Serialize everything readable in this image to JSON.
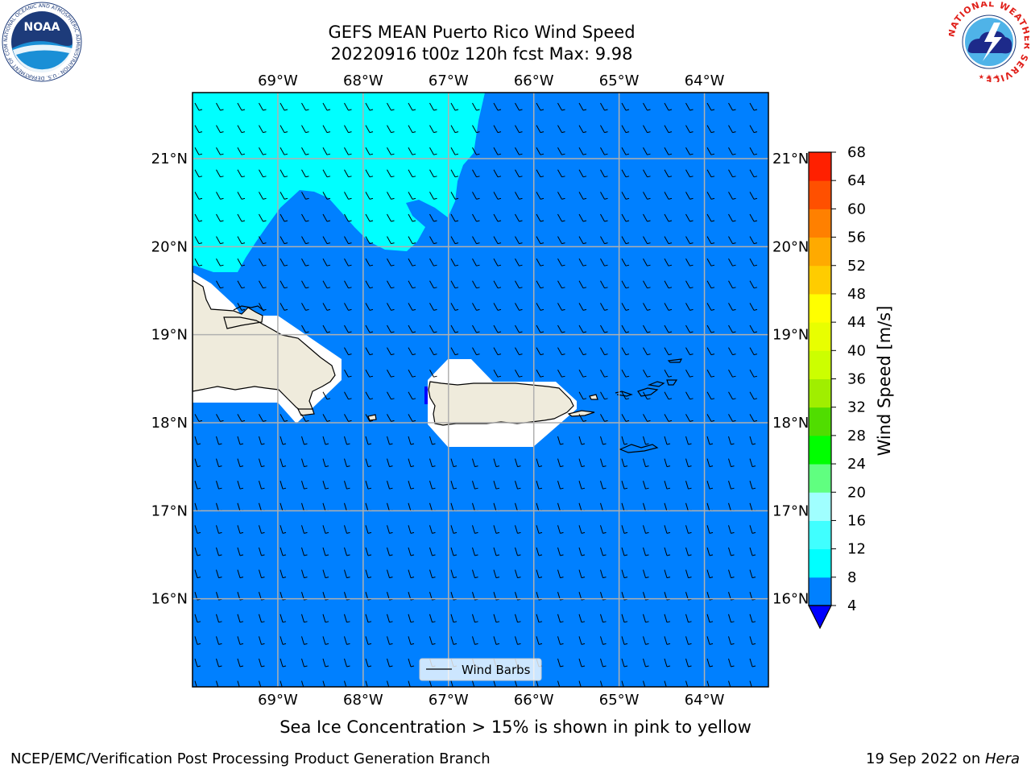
{
  "title_line1": "GEFS MEAN Puerto Rico Wind Speed",
  "title_line2": "20220916 t00z 120h fcst   Max: 9.98",
  "logos": {
    "left_name": "NOAA",
    "left_ring_text": "NATIONAL OCEANIC AND ATMOSPHERIC ADMINISTRATION · U.S. DEPARTMENT OF COMMERCE",
    "right_ring_text": "NATIONAL WEATHER SERVICE"
  },
  "map": {
    "lon_labels": [
      "69°W",
      "68°W",
      "67°W",
      "66°W",
      "65°W",
      "64°W"
    ],
    "lon_values": [
      -69,
      -68,
      -67,
      -66,
      -65,
      -64
    ],
    "lat_labels": [
      "21°N",
      "20°N",
      "19°N",
      "18°N",
      "17°N",
      "16°N"
    ],
    "lat_values": [
      21,
      20,
      19,
      18,
      17,
      16
    ],
    "lon_range": [
      -70.0,
      -63.25
    ],
    "lat_range": [
      15.0,
      21.75
    ],
    "legend_label": "Wind Barbs",
    "fill_colors": {
      "ocean_speed_4_8": "#0080ff",
      "speed_8_12": "#00ffff",
      "speed_below_4": "#0000ff",
      "land": "#efebdc",
      "masked": "#ffffff"
    }
  },
  "colorbar": {
    "label": "Wind Speed [m/s]",
    "ticks": [
      "68",
      "64",
      "60",
      "56",
      "52",
      "48",
      "44",
      "40",
      "36",
      "32",
      "28",
      "24",
      "20",
      "16",
      "12",
      "8",
      "4"
    ],
    "colors_bottom_to_top": [
      "#0080ff",
      "#00ffff",
      "#40ffff",
      "#a0ffff",
      "#60ff80",
      "#00ff00",
      "#50dd00",
      "#a0ee00",
      "#ccff00",
      "#e8ff00",
      "#ffff00",
      "#ffcc00",
      "#ffaa00",
      "#ff8000",
      "#ff5000",
      "#ff2000"
    ],
    "extend_min_color": "#0000ff"
  },
  "caption": "Sea Ice Concentration > 15% is shown in pink to yellow",
  "footer_left": "NCEP/EMC/Verification Post Processing Product Generation Branch",
  "footer_right_date": "19 Sep 2022 on ",
  "footer_right_host": "Hera"
}
